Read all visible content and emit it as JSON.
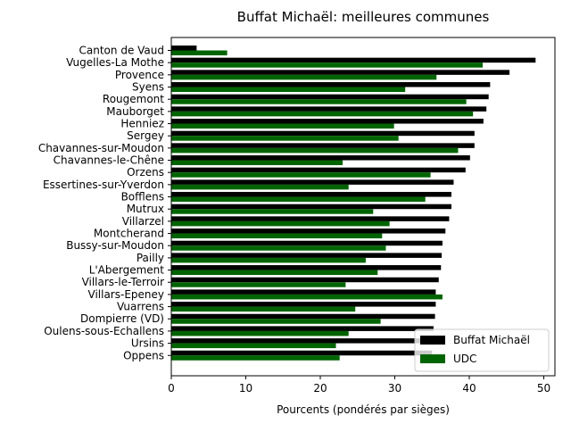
{
  "chart_data": {
    "type": "bar",
    "orientation": "horizontal",
    "title": "Buffat Michaël: meilleures communes",
    "xlabel": "Pourcents (pondérés par sièges)",
    "ylabel": "",
    "xlim": [
      0,
      51.5
    ],
    "xticks": [
      0,
      10,
      20,
      30,
      40,
      50
    ],
    "grid": false,
    "legend_position": "lower right",
    "categories": [
      "Canton de Vaud",
      "Vugelles-La Mothe",
      "Provence",
      "Syens",
      "Rougemont",
      "Mauborget",
      "Henniez",
      "Sergey",
      "Chavannes-sur-Moudon",
      "Chavannes-le-Chêne",
      "Orzens",
      "Essertines-sur-Yverdon",
      "Bofflens",
      "Mutrux",
      "Villarzel",
      "Montcherand",
      "Bussy-sur-Moudon",
      "Pailly",
      "L'Abergement",
      "Villars-le-Terroir",
      "Villars-Epeney",
      "Vuarrens",
      "Dompierre (VD)",
      "Oulens-sous-Echallens",
      "Ursins",
      "Oppens"
    ],
    "series": [
      {
        "name": "Buffat Michaël",
        "color": "#000000",
        "values": [
          3.4,
          48.9,
          45.4,
          42.8,
          42.6,
          42.3,
          41.9,
          40.7,
          40.7,
          40.1,
          39.5,
          37.9,
          37.6,
          37.6,
          37.3,
          36.8,
          36.4,
          36.3,
          36.2,
          35.9,
          35.5,
          35.5,
          35.4,
          35.2,
          35.1,
          35.0
        ]
      },
      {
        "name": "UDC",
        "color": "#006400",
        "values": [
          7.5,
          41.8,
          35.6,
          31.4,
          39.6,
          40.5,
          29.9,
          30.5,
          38.5,
          23.0,
          34.8,
          23.8,
          34.1,
          27.1,
          29.3,
          28.3,
          28.8,
          26.1,
          27.7,
          23.4,
          36.4,
          24.7,
          28.1,
          23.8,
          22.1,
          22.6
        ]
      }
    ]
  }
}
